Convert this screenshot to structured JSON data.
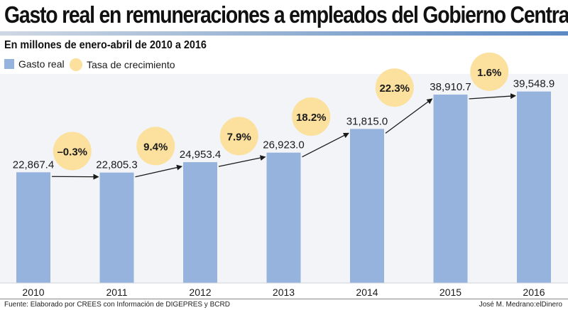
{
  "chart_data": {
    "type": "bar",
    "title": "Gasto real en remuneraciones a empleados del Gobierno Central",
    "subtitle": "En millones de enero-abril de 2010 a 2016",
    "categories": [
      "2010",
      "2011",
      "2012",
      "2013",
      "2014",
      "2015",
      "2016"
    ],
    "series": [
      {
        "name": "Gasto real",
        "values": [
          22867.4,
          22805.3,
          24953.4,
          26923.0,
          31815.0,
          38910.7,
          39548.9
        ],
        "labels": [
          "22,867.4",
          "22,805.3",
          "24,953.4",
          "26,923.0",
          "31,815.0",
          "38,910.7",
          "39,548.9"
        ],
        "color": "#95b3dd"
      }
    ],
    "growth": {
      "name": "Tasa de crecimiento",
      "values": [
        -0.3,
        9.4,
        7.9,
        18.2,
        22.3,
        1.6
      ],
      "labels": [
        "–0.3%",
        "9.4%",
        "7.9%",
        "18.2%",
        "22.3%",
        "1.6%"
      ],
      "color": "#fbe09e"
    },
    "xlabel": "",
    "ylabel": "",
    "ylim": [
      0,
      42000
    ],
    "legend_position": "top-left"
  },
  "footer": {
    "source": "Fuente: Elaborado por CREES con Información de DIGEPRES y BCRD",
    "credit": "José M. Medrano:elDinero"
  }
}
